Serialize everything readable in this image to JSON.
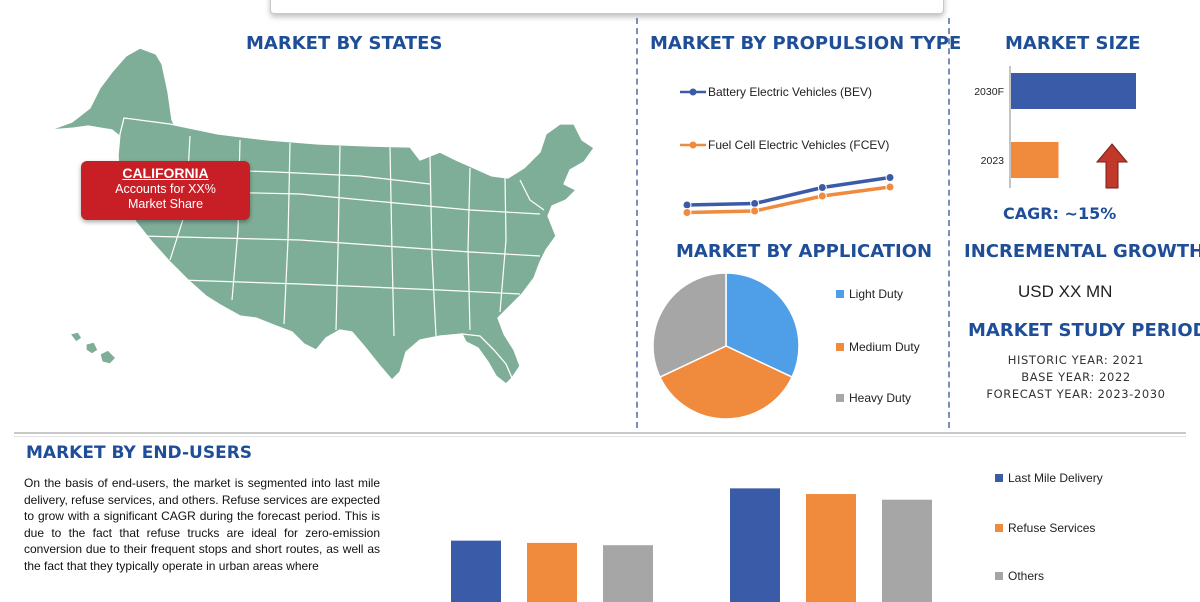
{
  "sections": {
    "states": "MARKET BY STATES",
    "propulsion": "MARKET BY PROPULSION TYPE",
    "size": "MARKET SIZE",
    "application": "MARKET BY APPLICATION",
    "incremental": "INCREMENTAL GROWTH",
    "study": "MARKET STUDY PERIOD",
    "endusers": "MARKET BY END-USERS"
  },
  "callout": {
    "state": "CALIFORNIA",
    "line1": "Accounts for XX%",
    "line2": "Market Share"
  },
  "market_size": {
    "cagr": "CAGR:  ~15%",
    "incremental_value": "USD XX MN",
    "arrow_color": "#c0392b"
  },
  "study_period": {
    "historic": "HISTORIC YEAR: 2021",
    "base": "BASE YEAR: 2022",
    "forecast": "FORECAST YEAR: 2023-2030"
  },
  "endusers_text": "On the basis of end-users, the market is segmented into last mile delivery, refuse services, and others. Refuse services are expected to grow with a significant CAGR during the forecast period. This is due to the fact that refuse trucks are ideal for zero-emission conversion due to their frequent stops and short routes, as well as the fact that they typically operate in urban areas where",
  "colors": {
    "blue": "#3a5ba8",
    "orange": "#f08a3c",
    "gray": "#a6a6a6",
    "light_blue": "#4f9fe8",
    "heading": "#1f4e99",
    "map": "#7fae98"
  },
  "chart_data": [
    {
      "type": "line",
      "series": [
        {
          "name": "Battery Electric Vehicles (BEV)",
          "color": "#3a5ba8",
          "values": [
            3,
            3.3,
            6.5,
            8.5
          ]
        },
        {
          "name": "Fuel Cell Electric Vehicles (FCEV)",
          "color": "#f08a3c",
          "values": [
            1.5,
            1.8,
            4.8,
            6.6
          ]
        }
      ],
      "categories": [
        "",
        "",
        "",
        ""
      ],
      "ylim": [
        0,
        10
      ]
    },
    {
      "type": "bar",
      "orientation": "horizontal",
      "categories": [
        "2030F",
        "2023"
      ],
      "values": [
        100,
        38
      ],
      "colors": [
        "#3a5ba8",
        "#f08a3c"
      ],
      "xlim": [
        0,
        100
      ]
    },
    {
      "type": "pie",
      "labels": [
        "Light Duty",
        "Medium Duty",
        "Heavy Duty"
      ],
      "values": [
        32,
        36,
        32
      ],
      "colors": [
        "#4f9fe8",
        "#f08a3c",
        "#a6a6a6"
      ],
      "legend": "right"
    },
    {
      "type": "bar",
      "categories": [
        "",
        ""
      ],
      "series": [
        {
          "name": "Last Mile Delivery",
          "color": "#3a5ba8",
          "values": [
            54,
            100
          ]
        },
        {
          "name": "Refuse Services",
          "color": "#f08a3c",
          "values": [
            52,
            95
          ]
        },
        {
          "name": "Others",
          "color": "#a6a6a6",
          "values": [
            50,
            90
          ]
        }
      ],
      "ylim": [
        0,
        110
      ],
      "legend": "right"
    }
  ]
}
